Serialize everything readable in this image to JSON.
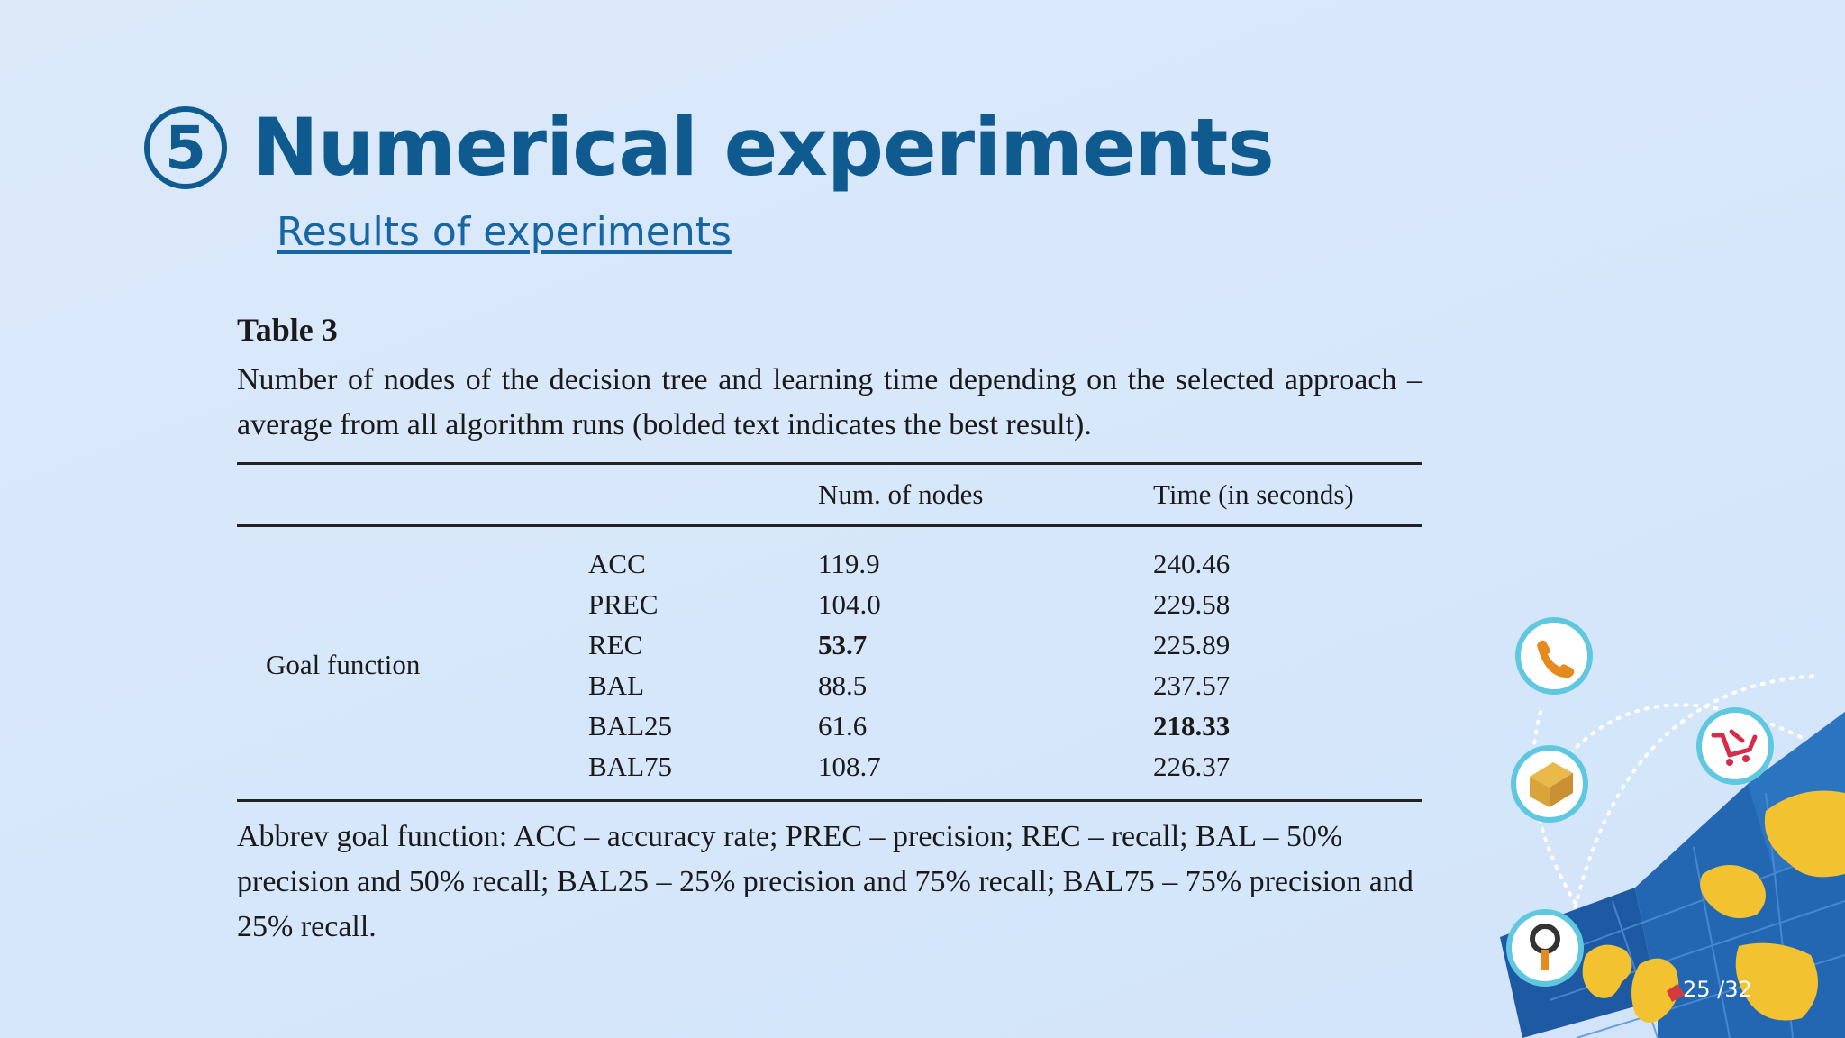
{
  "slide": {
    "number_badge": "5",
    "title": "Numerical experiments",
    "subtitle": "Results of experiments",
    "page_indicator": "25 /32"
  },
  "table": {
    "label": "Table 3",
    "caption": "Number of nodes of the decision tree and learning time depending on the selected approach – average from all algorithm runs (bolded text indicates the best result).",
    "headers": [
      "",
      "",
      "Num. of nodes",
      "Time (in seconds)"
    ],
    "group_label": "Goal function",
    "rows": [
      {
        "name": "ACC",
        "nodes": "119.9",
        "time": "240.46"
      },
      {
        "name": "PREC",
        "nodes": "104.0",
        "time": "229.58"
      },
      {
        "name": "REC",
        "nodes": "53.7",
        "time": "225.89"
      },
      {
        "name": "BAL",
        "nodes": "88.5",
        "time": "237.57"
      },
      {
        "name": "BAL25",
        "nodes": "61.6",
        "time": "218.33"
      },
      {
        "name": "BAL75",
        "nodes": "108.7",
        "time": "226.37"
      }
    ],
    "footnote": "Abbrev goal function: ACC – accuracy rate; PREC – precision; REC – recall; BAL – 50% precision and 50% recall; BAL25 – 25% precision and 75% recall; BAL75 – 75% precision and 25% recall."
  },
  "decoration": {
    "icons": [
      "phone-icon",
      "cart-icon",
      "package-icon",
      "location-pin-icon",
      "globe-map-icon"
    ],
    "colors": {
      "title": "#0f5b8f",
      "map_blue": "#1f5fa8",
      "land": "#f2c230",
      "icon_ring": "#5fc8e0"
    }
  }
}
